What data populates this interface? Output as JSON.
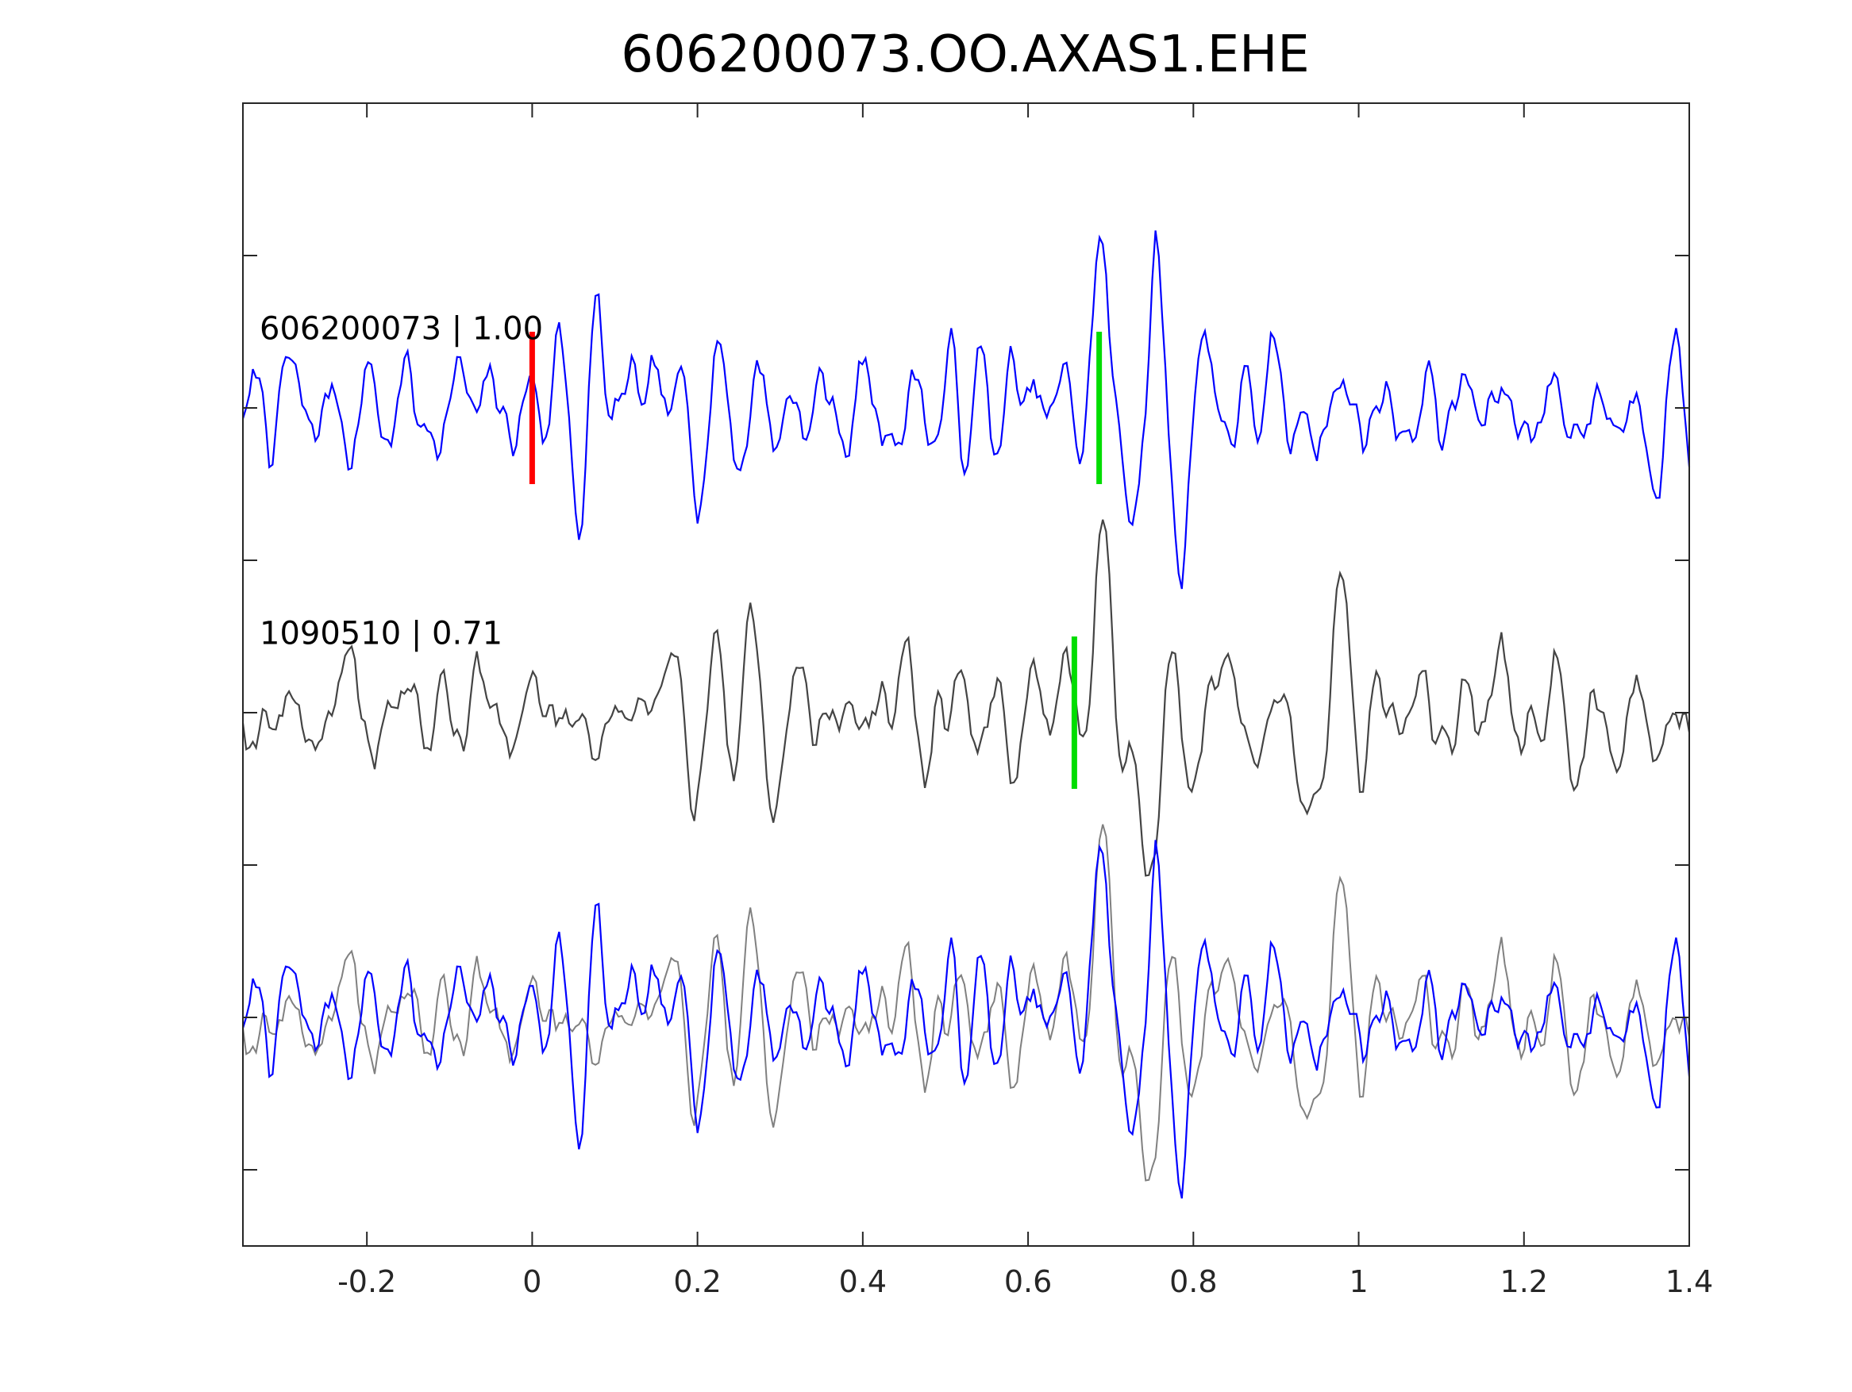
{
  "chart_data": {
    "type": "line",
    "title": "606200073.OO.AXAS1.EHE",
    "xlabel": "",
    "ylabel": "",
    "xlim": [
      -0.35,
      1.4
    ],
    "ylim": [
      -3.5,
      4.0
    ],
    "grid": false,
    "xticks": [
      -0.2,
      0,
      0.2,
      0.4,
      0.6,
      0.8,
      1,
      1.2,
      1.4
    ],
    "xtick_labels": [
      "-0.2",
      "0",
      "0.2",
      "0.4",
      "0.6",
      "0.8",
      "1",
      "1.2",
      "1.4"
    ],
    "yticks": [
      -3,
      -2,
      -1,
      0,
      1,
      2,
      3
    ],
    "panels": [
      {
        "label": "606200073 | 1.00",
        "baseline": 2.0,
        "trace_color": "#0000ff",
        "seed": 7,
        "features": [
          {
            "t": 0.03,
            "amp": 0.45,
            "w": 0.006
          },
          {
            "t": 0.06,
            "amp": -0.55,
            "w": 0.008
          },
          {
            "t": 0.08,
            "amp": 0.45,
            "w": 0.007
          },
          {
            "t": 0.688,
            "amp": 1.0,
            "w": 0.008
          },
          {
            "t": 0.72,
            "amp": -0.55,
            "w": 0.008
          },
          {
            "t": 0.755,
            "amp": 0.65,
            "w": 0.007
          },
          {
            "t": 0.785,
            "amp": -0.9,
            "w": 0.008
          },
          {
            "t": 0.81,
            "amp": 0.55,
            "w": 0.007
          }
        ],
        "picks": [
          {
            "t": 0.0,
            "color": "#ff0000"
          },
          {
            "t": 0.686,
            "color": "#00dd00"
          }
        ]
      },
      {
        "label": "1090510 | 0.71",
        "baseline": 0.0,
        "trace_color": "#444444",
        "seed": 19,
        "features": [
          {
            "t": 0.69,
            "amp": 1.05,
            "w": 0.012
          },
          {
            "t": 0.74,
            "amp": -1.05,
            "w": 0.012
          },
          {
            "t": 0.85,
            "amp": 0.3,
            "w": 0.008
          },
          {
            "t": 0.93,
            "amp": -0.65,
            "w": 0.01
          },
          {
            "t": 0.975,
            "amp": 0.35,
            "w": 0.008
          }
        ],
        "picks": [
          {
            "t": 0.656,
            "color": "#00dd00"
          }
        ]
      }
    ],
    "overlay": {
      "baseline": -2.0,
      "series_colors": [
        "#0000ff",
        "#808080"
      ]
    },
    "colors": {
      "axis": "#262626",
      "pick_red": "#ff0000",
      "pick_green": "#00dd00"
    }
  }
}
